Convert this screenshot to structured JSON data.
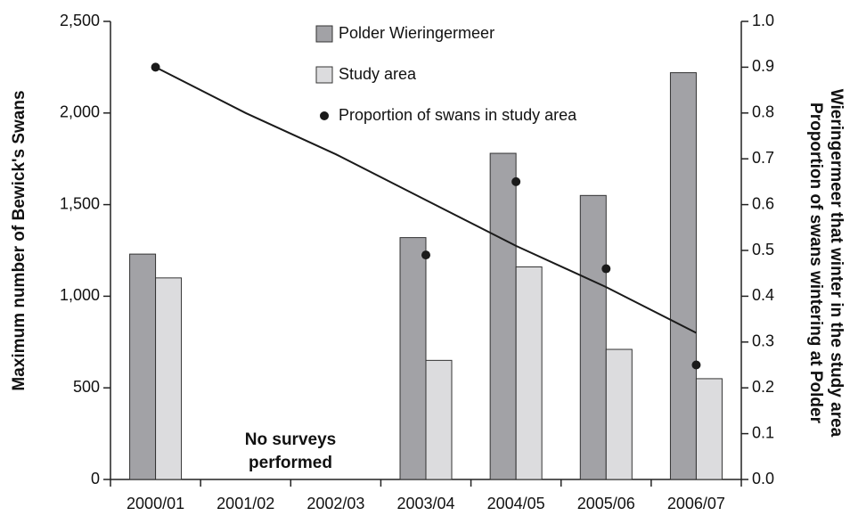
{
  "chart_data": {
    "type": "bar",
    "ylabel": "Maximum number of Bewick's Swans",
    "y2label": [
      "Proportion of swans wintering at Polder",
      "Wieringermeer that winter in the study area"
    ],
    "annotation": [
      "No surveys",
      "performed"
    ],
    "categories": [
      "2000/01",
      "2001/02",
      "2002/03",
      "2003/04",
      "2004/05",
      "2005/06",
      "2006/07"
    ],
    "series": [
      {
        "name": "Polder Wieringermeer",
        "type": "bar",
        "color": "#a2a2a6",
        "values": [
          1230,
          null,
          null,
          1320,
          1780,
          1550,
          2220
        ]
      },
      {
        "name": "Study area",
        "type": "bar",
        "color": "#dcdcde",
        "values": [
          1100,
          null,
          null,
          650,
          1160,
          710,
          550
        ]
      },
      {
        "name": "Proportion of swans in study area",
        "type": "scatter",
        "axis": "y2",
        "color": "#1a1a1a",
        "values": [
          0.9,
          null,
          null,
          0.49,
          0.65,
          0.46,
          0.25
        ]
      },
      {
        "type": "line",
        "axis": "y2",
        "color": "#1a1a1a",
        "values": [
          0.9,
          0.8,
          0.71,
          0.61,
          0.51,
          0.42,
          0.32
        ]
      }
    ],
    "ylim": [
      0,
      2500
    ],
    "yticks": [
      0,
      500,
      {
        "value": 1000,
        "label": "1,000"
      },
      {
        "value": 1500,
        "label": "1,500"
      },
      {
        "value": 2000,
        "label": "2,000"
      },
      {
        "value": 2500,
        "label": "2,500"
      }
    ],
    "y2lim": [
      0,
      1
    ],
    "y2ticks": [
      {
        "value": 0,
        "label": "0.0"
      },
      0.1,
      0.2,
      0.3,
      0.4,
      0.5,
      0.6,
      0.7,
      0.8,
      0.9,
      {
        "value": 1,
        "label": "1.0"
      }
    ],
    "grid": false,
    "legend": "top"
  }
}
